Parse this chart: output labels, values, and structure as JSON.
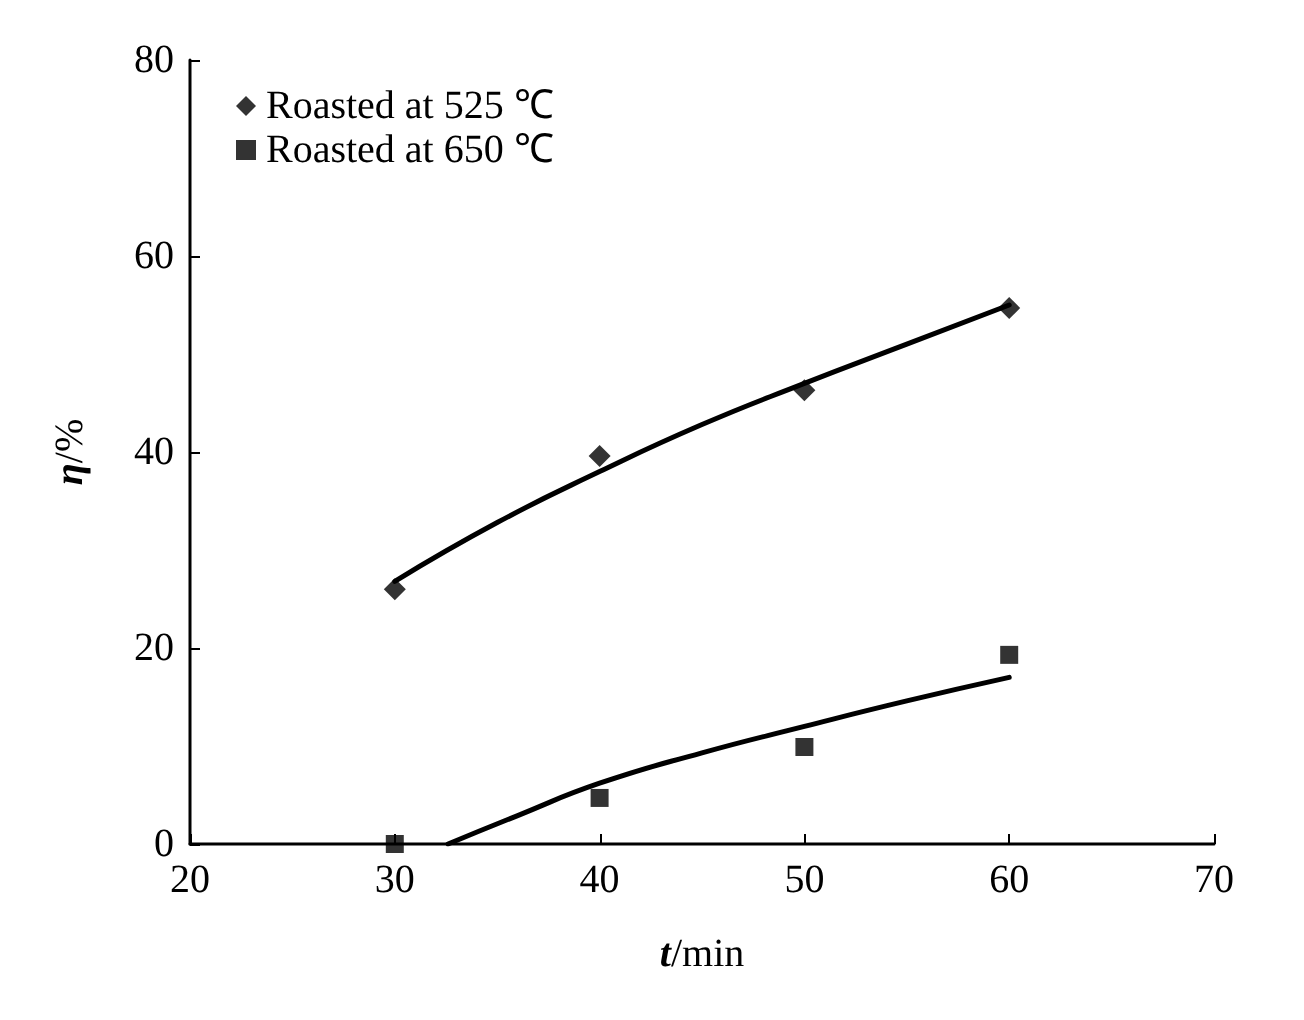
{
  "chart_data": {
    "type": "scatter",
    "xlabel": "t/min",
    "ylabel": "η/%",
    "xlim": [
      20,
      70
    ],
    "xticks": [
      20,
      30,
      40,
      50,
      60,
      70
    ],
    "ylim": [
      0,
      80
    ],
    "yticks": [
      0,
      20,
      40,
      60,
      80
    ],
    "grid": false,
    "legend": "top left",
    "series": [
      {
        "name": "Roasted at 525 ℃",
        "color": "#000000",
        "marker": "diamond",
        "x": [
          30,
          40,
          50,
          60
        ],
        "values": [
          26,
          39.6,
          46.3,
          54.7
        ]
      },
      {
        "name": "Roasted at 650 ℃",
        "color": "#000000",
        "marker": "square",
        "x": [
          30,
          40,
          50,
          60
        ],
        "values": [
          0,
          4.7,
          9.9,
          19.3
        ]
      },
      {
        "type": "line",
        "color": "#000000",
        "marker": "none",
        "x": [
          30,
          35,
          40,
          45,
          50,
          55,
          60
        ],
        "values": [
          26.8,
          32.8,
          38,
          42.8,
          47,
          51,
          55
        ]
      },
      {
        "type": "line",
        "color": "#000000",
        "marker": "none",
        "x": [
          32.6,
          36,
          40,
          45,
          50,
          55,
          60
        ],
        "values": [
          0,
          2.9,
          6.2,
          9.3,
          12,
          14.6,
          17
        ]
      }
    ]
  }
}
